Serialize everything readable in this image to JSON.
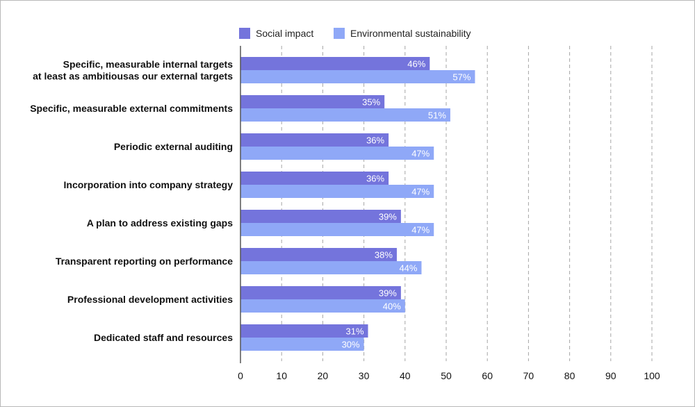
{
  "chart_data": {
    "type": "bar",
    "orientation": "horizontal",
    "categories": [
      "Specific, measurable internal targets|at least as ambitiousas our external targets",
      "Specific, measurable external commitments",
      "Periodic external auditing",
      "Incorporation into company strategy",
      "A plan to address existing gaps",
      "Transparent reporting on performance",
      "Professional development activities",
      "Dedicated staff and resources"
    ],
    "series": [
      {
        "name": "Social impact",
        "values": [
          46,
          35,
          36,
          36,
          39,
          38,
          39,
          31
        ],
        "labels": [
          "46%",
          "35%",
          "36%",
          "36%",
          "39%",
          "38%",
          "39%",
          "31%"
        ],
        "color": "#7474dc"
      },
      {
        "name": "Environmental sustainability",
        "values": [
          57,
          51,
          47,
          47,
          47,
          44,
          40,
          30
        ],
        "labels": [
          "57%",
          "51%",
          "47%",
          "47%",
          "47%",
          "44%",
          "40%",
          "30%"
        ],
        "color": "#8fa8f7"
      }
    ],
    "xlim": [
      0,
      100
    ],
    "xticks": [
      0,
      10,
      20,
      30,
      40,
      50,
      60,
      70,
      80,
      90,
      100
    ],
    "title": "",
    "xlabel": "",
    "ylabel": "",
    "grid": "vertical dashed",
    "legend_position": "top"
  }
}
